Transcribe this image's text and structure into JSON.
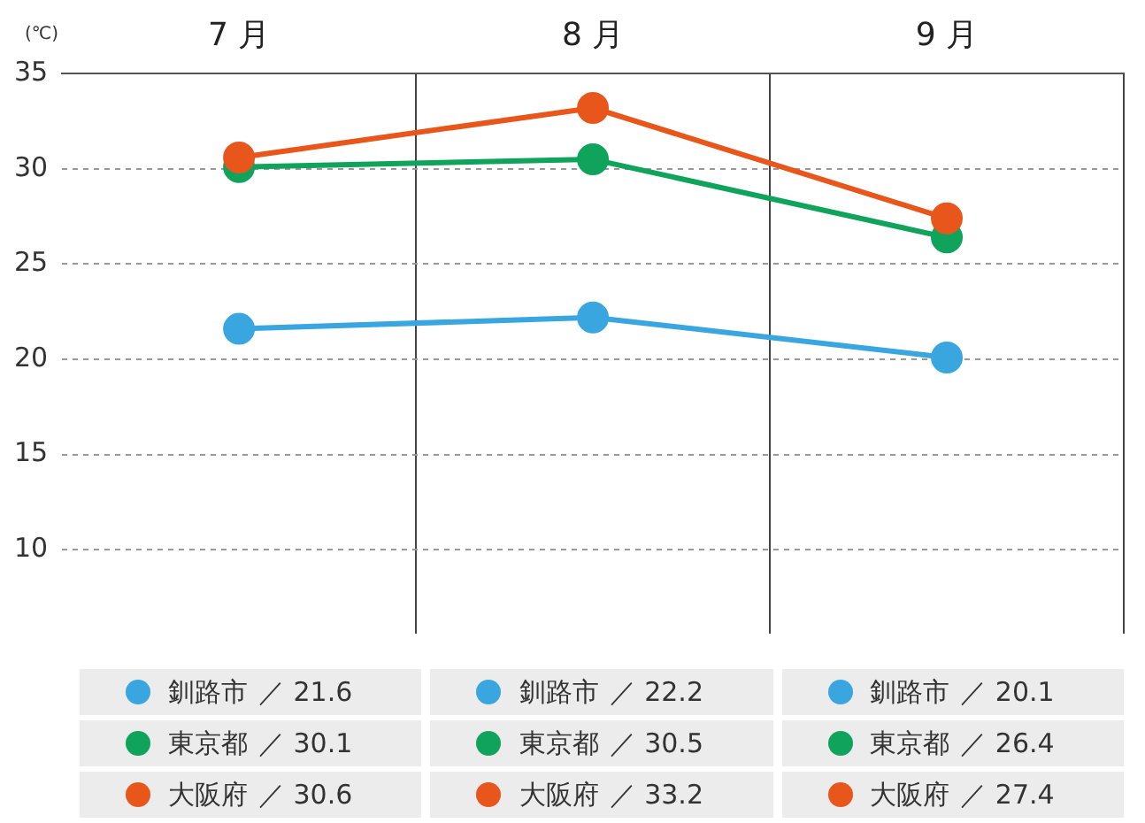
{
  "chart_data": {
    "type": "line",
    "ylabel": "(℃)",
    "categories": [
      "7 月",
      "8 月",
      "9 月"
    ],
    "series": [
      {
        "name": "釧路市",
        "color": "#3aa6e0",
        "values": [
          21.6,
          22.2,
          20.1
        ],
        "value_labels": [
          "／ 21.6",
          "／ 22.2",
          "／ 20.1"
        ]
      },
      {
        "name": "東京都",
        "color": "#10a35b",
        "values": [
          30.1,
          30.5,
          26.4
        ],
        "value_labels": [
          "／ 30.1",
          "／ 30.5",
          "／ 26.4"
        ]
      },
      {
        "name": "大阪府",
        "color": "#e8561b",
        "values": [
          30.6,
          33.2,
          27.4
        ],
        "value_labels": [
          "／ 30.6",
          "／ 33.2",
          "／ 27.4"
        ]
      }
    ],
    "ylim": [
      5.6,
      35
    ],
    "yticks": [
      10,
      15,
      20,
      25,
      30,
      35
    ],
    "grid": true,
    "marker": "circle",
    "line_style": "solid",
    "legend": "bottom"
  }
}
